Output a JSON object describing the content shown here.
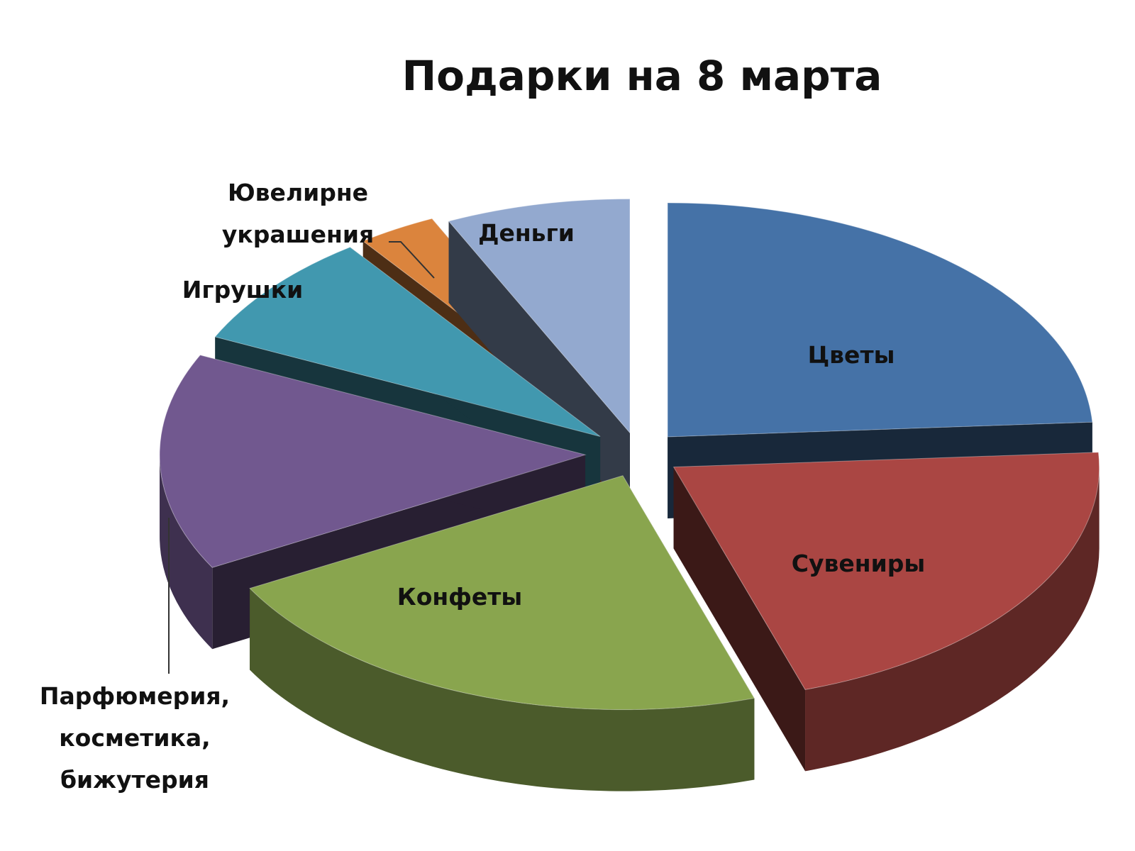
{
  "chart_data": {
    "type": "pie",
    "title": "Подарки на 8 марта",
    "three_d": true,
    "exploded": true,
    "legend": "none",
    "slices": [
      {
        "label": "Цветы",
        "label_lines": [
          "Цветы"
        ],
        "value": 24,
        "color": "#4572A7"
      },
      {
        "label": "Сувениры",
        "label_lines": [
          "Сувениры"
        ],
        "value": 21,
        "color": "#AA4643"
      },
      {
        "label": "Конфеты",
        "label_lines": [
          "Конфеты"
        ],
        "value": 22,
        "color": "#89A54E"
      },
      {
        "label": "Парфюмерия, косметика, бижутерия",
        "label_lines": [
          "Парфюмерия,",
          "косметика,",
          "бижутерия"
        ],
        "value": 15,
        "color": "#71588F"
      },
      {
        "label": "Игрушки",
        "label_lines": [
          "Игрушки"
        ],
        "value": 8,
        "color": "#4198AF"
      },
      {
        "label": "Ювелирне украшения",
        "label_lines": [
          "Ювелирне",
          "украшения"
        ],
        "value": 3,
        "color": "#DB843D"
      },
      {
        "label": "Деньги",
        "label_lines": [
          "Деньги"
        ],
        "value": 7,
        "color": "#93A9CF"
      }
    ]
  }
}
